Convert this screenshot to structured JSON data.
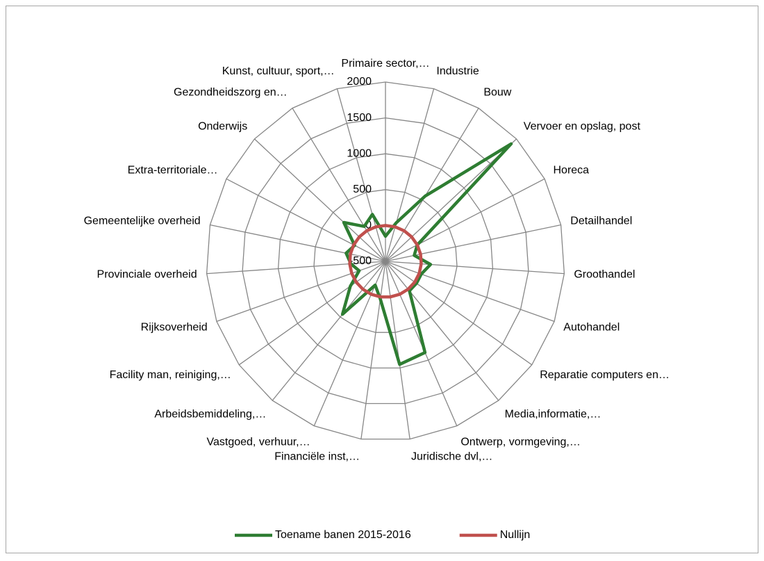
{
  "chart_data": {
    "type": "radar",
    "categories": [
      "Primaire sector,…",
      "Industrie",
      "Bouw",
      "Vervoer en opslag, post",
      "Horeca",
      "Detailhandel",
      "Groothandel",
      "Autohandel",
      "Reparatie computers en…",
      "Media,informatie,…",
      "Ontwerp, vormgeving,…",
      "Juridische dvl,…",
      "Financiële inst,…",
      "Vastgoed, verhuur,…",
      "Arbeidsbemiddeling,…",
      "Facility man, reiniging,…",
      "Rijksoverheid",
      "Provinciale overheid",
      "Gemeentelijke overheid",
      "Extra-territoriale…",
      "Onderwijs",
      "Gezondheidszorg en…",
      "Kunst, cultuur, sport,…"
    ],
    "series": [
      {
        "name": "Toename banen 2015-2016",
        "color": "#2e7d32",
        "values": [
          -150,
          60,
          565,
          1900,
          0,
          -90,
          130,
          30,
          30,
          30,
          885,
          950,
          30,
          -140,
          450,
          100,
          -110,
          -15,
          60,
          -15,
          295,
          70,
          180
        ]
      },
      {
        "name": "Nullijn",
        "color": "#c0504d",
        "values": [
          0,
          0,
          0,
          0,
          0,
          0,
          0,
          0,
          0,
          0,
          0,
          0,
          0,
          0,
          0,
          0,
          0,
          0,
          0,
          0,
          0,
          0,
          0
        ]
      }
    ],
    "ylim": [
      -500,
      2000
    ],
    "yticks": [
      -500,
      0,
      500,
      1000,
      1500,
      2000
    ],
    "grid": true,
    "legend": "bottom"
  }
}
